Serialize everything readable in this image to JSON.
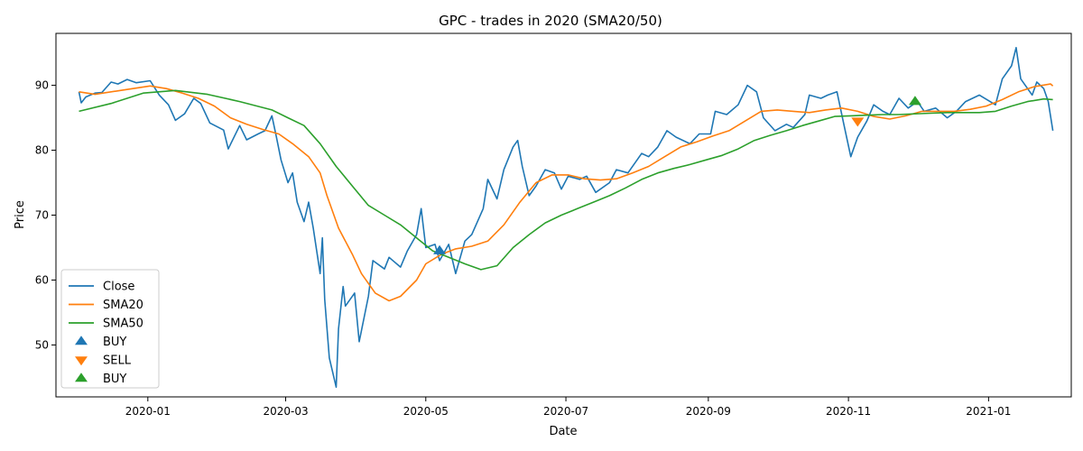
{
  "chart_data": {
    "type": "line",
    "title": "GPC - trades in 2020 (SMA20/50)",
    "xlabel": "Date",
    "ylabel": "Price",
    "xlim": [
      "2019-11-22",
      "2021-02-06"
    ],
    "ylim": [
      42,
      98
    ],
    "x_ticks": [
      "2020-01",
      "2020-03",
      "2020-05",
      "2020-07",
      "2020-09",
      "2020-11",
      "2021-01"
    ],
    "y_ticks": [
      50,
      60,
      70,
      80,
      90
    ],
    "grid": false,
    "legend_position": "lower-left",
    "series": [
      {
        "name": "Close",
        "color": "#1f77b4",
        "points": [
          [
            "2019-12-02",
            89.0
          ],
          [
            "2019-12-03",
            87.3
          ],
          [
            "2019-12-05",
            88.2
          ],
          [
            "2019-12-09",
            88.8
          ],
          [
            "2019-12-12",
            88.9
          ],
          [
            "2019-12-16",
            90.5
          ],
          [
            "2019-12-19",
            90.2
          ],
          [
            "2019-12-23",
            90.9
          ],
          [
            "2019-12-27",
            90.4
          ],
          [
            "2020-01-02",
            90.7
          ],
          [
            "2020-01-06",
            88.5
          ],
          [
            "2020-01-10",
            87.0
          ],
          [
            "2020-01-13",
            84.6
          ],
          [
            "2020-01-17",
            85.6
          ],
          [
            "2020-01-21",
            88.0
          ],
          [
            "2020-01-24",
            87.2
          ],
          [
            "2020-01-28",
            84.2
          ],
          [
            "2020-02-03",
            83.1
          ],
          [
            "2020-02-05",
            80.2
          ],
          [
            "2020-02-10",
            83.8
          ],
          [
            "2020-02-13",
            81.6
          ],
          [
            "2020-02-18",
            82.5
          ],
          [
            "2020-02-21",
            83.0
          ],
          [
            "2020-02-24",
            85.3
          ],
          [
            "2020-02-26",
            82.0
          ],
          [
            "2020-02-28",
            78.5
          ],
          [
            "2020-03-02",
            75.0
          ],
          [
            "2020-03-04",
            76.5
          ],
          [
            "2020-03-06",
            72.0
          ],
          [
            "2020-03-09",
            69.0
          ],
          [
            "2020-03-11",
            72.0
          ],
          [
            "2020-03-13",
            68.0
          ],
          [
            "2020-03-16",
            61.0
          ],
          [
            "2020-03-17",
            66.5
          ],
          [
            "2020-03-18",
            57.0
          ],
          [
            "2020-03-20",
            48.0
          ],
          [
            "2020-03-23",
            43.5
          ],
          [
            "2020-03-24",
            52.5
          ],
          [
            "2020-03-26",
            59.0
          ],
          [
            "2020-03-27",
            56.0
          ],
          [
            "2020-03-31",
            58.0
          ],
          [
            "2020-04-02",
            50.5
          ],
          [
            "2020-04-06",
            57.5
          ],
          [
            "2020-04-08",
            63.0
          ],
          [
            "2020-04-13",
            61.7
          ],
          [
            "2020-04-15",
            63.5
          ],
          [
            "2020-04-20",
            62.0
          ],
          [
            "2020-04-23",
            64.5
          ],
          [
            "2020-04-27",
            67.0
          ],
          [
            "2020-04-29",
            71.0
          ],
          [
            "2020-05-01",
            65.0
          ],
          [
            "2020-05-05",
            65.5
          ],
          [
            "2020-05-07",
            63.0
          ],
          [
            "2020-05-11",
            65.5
          ],
          [
            "2020-05-14",
            61.0
          ],
          [
            "2020-05-18",
            66.0
          ],
          [
            "2020-05-21",
            67.0
          ],
          [
            "2020-05-26",
            71.0
          ],
          [
            "2020-05-28",
            75.5
          ],
          [
            "2020-06-01",
            72.5
          ],
          [
            "2020-06-04",
            77.0
          ],
          [
            "2020-06-08",
            80.5
          ],
          [
            "2020-06-10",
            81.5
          ],
          [
            "2020-06-12",
            77.5
          ],
          [
            "2020-06-15",
            73.0
          ],
          [
            "2020-06-18",
            74.5
          ],
          [
            "2020-06-22",
            77.0
          ],
          [
            "2020-06-26",
            76.5
          ],
          [
            "2020-06-29",
            74.0
          ],
          [
            "2020-07-02",
            76.0
          ],
          [
            "2020-07-07",
            75.5
          ],
          [
            "2020-07-10",
            76.0
          ],
          [
            "2020-07-14",
            73.5
          ],
          [
            "2020-07-20",
            75.0
          ],
          [
            "2020-07-23",
            77.0
          ],
          [
            "2020-07-28",
            76.5
          ],
          [
            "2020-08-03",
            79.5
          ],
          [
            "2020-08-06",
            79.0
          ],
          [
            "2020-08-10",
            80.5
          ],
          [
            "2020-08-14",
            83.0
          ],
          [
            "2020-08-18",
            82.0
          ],
          [
            "2020-08-24",
            81.0
          ],
          [
            "2020-08-28",
            82.5
          ],
          [
            "2020-09-02",
            82.5
          ],
          [
            "2020-09-04",
            86.0
          ],
          [
            "2020-09-09",
            85.5
          ],
          [
            "2020-09-14",
            87.0
          ],
          [
            "2020-09-18",
            90.0
          ],
          [
            "2020-09-22",
            89.0
          ],
          [
            "2020-09-25",
            85.0
          ],
          [
            "2020-09-30",
            83.0
          ],
          [
            "2020-10-05",
            84.0
          ],
          [
            "2020-10-08",
            83.5
          ],
          [
            "2020-10-13",
            85.5
          ],
          [
            "2020-10-15",
            88.5
          ],
          [
            "2020-10-20",
            88.0
          ],
          [
            "2020-10-23",
            88.5
          ],
          [
            "2020-10-27",
            89.0
          ],
          [
            "2020-10-30",
            84.0
          ],
          [
            "2020-11-02",
            79.0
          ],
          [
            "2020-11-05",
            82.0
          ],
          [
            "2020-11-09",
            84.5
          ],
          [
            "2020-11-12",
            87.0
          ],
          [
            "2020-11-16",
            86.0
          ],
          [
            "2020-11-19",
            85.5
          ],
          [
            "2020-11-23",
            88.0
          ],
          [
            "2020-11-27",
            86.5
          ],
          [
            "2020-12-01",
            87.5
          ],
          [
            "2020-12-04",
            86.0
          ],
          [
            "2020-12-09",
            86.5
          ],
          [
            "2020-12-14",
            85.0
          ],
          [
            "2020-12-18",
            86.0
          ],
          [
            "2020-12-22",
            87.5
          ],
          [
            "2020-12-28",
            88.5
          ],
          [
            "2021-01-04",
            87.0
          ],
          [
            "2021-01-07",
            91.0
          ],
          [
            "2021-01-11",
            93.0
          ],
          [
            "2021-01-13",
            95.8
          ],
          [
            "2021-01-15",
            91.0
          ],
          [
            "2021-01-20",
            88.5
          ],
          [
            "2021-01-22",
            90.5
          ],
          [
            "2021-01-25",
            89.5
          ],
          [
            "2021-01-27",
            87.5
          ],
          [
            "2021-01-29",
            83.0
          ]
        ]
      },
      {
        "name": "SMA20",
        "color": "#ff7f0e",
        "points": [
          [
            "2019-12-02",
            89.0
          ],
          [
            "2019-12-09",
            88.6
          ],
          [
            "2019-12-20",
            89.2
          ],
          [
            "2020-01-02",
            89.9
          ],
          [
            "2020-01-09",
            89.5
          ],
          [
            "2020-01-16",
            88.8
          ],
          [
            "2020-01-23",
            88.0
          ],
          [
            "2020-01-30",
            86.8
          ],
          [
            "2020-02-06",
            85.0
          ],
          [
            "2020-02-13",
            84.0
          ],
          [
            "2020-02-20",
            83.2
          ],
          [
            "2020-02-27",
            82.5
          ],
          [
            "2020-03-04",
            81.0
          ],
          [
            "2020-03-11",
            79.0
          ],
          [
            "2020-03-16",
            76.5
          ],
          [
            "2020-03-19",
            73.0
          ],
          [
            "2020-03-24",
            68.0
          ],
          [
            "2020-03-30",
            64.0
          ],
          [
            "2020-04-03",
            61.0
          ],
          [
            "2020-04-09",
            58.0
          ],
          [
            "2020-04-15",
            56.8
          ],
          [
            "2020-04-20",
            57.5
          ],
          [
            "2020-04-27",
            60.0
          ],
          [
            "2020-05-01",
            62.5
          ],
          [
            "2020-05-08",
            64.0
          ],
          [
            "2020-05-14",
            64.8
          ],
          [
            "2020-05-21",
            65.2
          ],
          [
            "2020-05-28",
            66.0
          ],
          [
            "2020-06-04",
            68.5
          ],
          [
            "2020-06-11",
            72.0
          ],
          [
            "2020-06-18",
            75.0
          ],
          [
            "2020-06-25",
            76.2
          ],
          [
            "2020-07-02",
            76.2
          ],
          [
            "2020-07-09",
            75.6
          ],
          [
            "2020-07-16",
            75.4
          ],
          [
            "2020-07-23",
            75.6
          ],
          [
            "2020-07-30",
            76.5
          ],
          [
            "2020-08-06",
            77.5
          ],
          [
            "2020-08-13",
            79.0
          ],
          [
            "2020-08-20",
            80.5
          ],
          [
            "2020-08-27",
            81.3
          ],
          [
            "2020-09-03",
            82.2
          ],
          [
            "2020-09-10",
            83.0
          ],
          [
            "2020-09-17",
            84.5
          ],
          [
            "2020-09-24",
            86.0
          ],
          [
            "2020-10-01",
            86.2
          ],
          [
            "2020-10-08",
            86.0
          ],
          [
            "2020-10-15",
            85.8
          ],
          [
            "2020-10-22",
            86.2
          ],
          [
            "2020-10-29",
            86.5
          ],
          [
            "2020-11-05",
            86.0
          ],
          [
            "2020-11-12",
            85.2
          ],
          [
            "2020-11-19",
            84.8
          ],
          [
            "2020-11-26",
            85.3
          ],
          [
            "2020-12-03",
            86.0
          ],
          [
            "2020-12-10",
            86.0
          ],
          [
            "2020-12-17",
            86.0
          ],
          [
            "2020-12-24",
            86.3
          ],
          [
            "2020-12-31",
            86.8
          ],
          [
            "2021-01-07",
            87.8
          ],
          [
            "2021-01-14",
            89.0
          ],
          [
            "2021-01-21",
            89.8
          ],
          [
            "2021-01-28",
            90.2
          ],
          [
            "2021-01-29",
            89.9
          ]
        ]
      },
      {
        "name": "SMA50",
        "color": "#2ca02c",
        "points": [
          [
            "2019-12-02",
            86.0
          ],
          [
            "2019-12-16",
            87.2
          ],
          [
            "2019-12-30",
            88.8
          ],
          [
            "2020-01-13",
            89.2
          ],
          [
            "2020-01-27",
            88.6
          ],
          [
            "2020-02-10",
            87.5
          ],
          [
            "2020-02-24",
            86.2
          ],
          [
            "2020-03-02",
            85.0
          ],
          [
            "2020-03-09",
            83.8
          ],
          [
            "2020-03-16",
            81.0
          ],
          [
            "2020-03-23",
            77.5
          ],
          [
            "2020-03-30",
            74.5
          ],
          [
            "2020-04-06",
            71.5
          ],
          [
            "2020-04-13",
            70.0
          ],
          [
            "2020-04-20",
            68.5
          ],
          [
            "2020-04-27",
            66.5
          ],
          [
            "2020-05-04",
            64.5
          ],
          [
            "2020-05-11",
            63.5
          ],
          [
            "2020-05-18",
            62.5
          ],
          [
            "2020-05-25",
            61.6
          ],
          [
            "2020-06-01",
            62.2
          ],
          [
            "2020-06-08",
            65.0
          ],
          [
            "2020-06-15",
            67.0
          ],
          [
            "2020-06-22",
            68.8
          ],
          [
            "2020-06-29",
            70.0
          ],
          [
            "2020-07-06",
            71.0
          ],
          [
            "2020-07-13",
            72.0
          ],
          [
            "2020-07-20",
            73.0
          ],
          [
            "2020-07-27",
            74.2
          ],
          [
            "2020-08-03",
            75.5
          ],
          [
            "2020-08-10",
            76.5
          ],
          [
            "2020-08-17",
            77.2
          ],
          [
            "2020-08-24",
            77.8
          ],
          [
            "2020-08-31",
            78.5
          ],
          [
            "2020-09-07",
            79.2
          ],
          [
            "2020-09-14",
            80.2
          ],
          [
            "2020-09-21",
            81.5
          ],
          [
            "2020-09-28",
            82.3
          ],
          [
            "2020-10-05",
            83.0
          ],
          [
            "2020-10-12",
            83.8
          ],
          [
            "2020-10-19",
            84.5
          ],
          [
            "2020-10-26",
            85.2
          ],
          [
            "2020-11-02",
            85.3
          ],
          [
            "2020-11-09",
            85.4
          ],
          [
            "2020-11-16",
            85.5
          ],
          [
            "2020-11-23",
            85.5
          ],
          [
            "2020-11-30",
            85.6
          ],
          [
            "2020-12-07",
            85.7
          ],
          [
            "2020-12-14",
            85.8
          ],
          [
            "2020-12-21",
            85.8
          ],
          [
            "2020-12-28",
            85.8
          ],
          [
            "2021-01-04",
            86.0
          ],
          [
            "2021-01-11",
            86.8
          ],
          [
            "2021-01-18",
            87.5
          ],
          [
            "2021-01-25",
            87.9
          ],
          [
            "2021-01-29",
            87.8
          ]
        ]
      }
    ],
    "markers": [
      {
        "name": "BUY",
        "symbol": "triangle-up",
        "color": "#1f77b4",
        "points": [
          [
            "2020-05-07",
            64.5
          ]
        ]
      },
      {
        "name": "SELL",
        "symbol": "triangle-down",
        "color": "#ff7f0e",
        "points": [
          [
            "2020-11-05",
            84.5
          ]
        ]
      },
      {
        "name": "BUY",
        "symbol": "triangle-up",
        "color": "#2ca02c",
        "points": [
          [
            "2020-11-30",
            87.5
          ]
        ]
      }
    ]
  }
}
